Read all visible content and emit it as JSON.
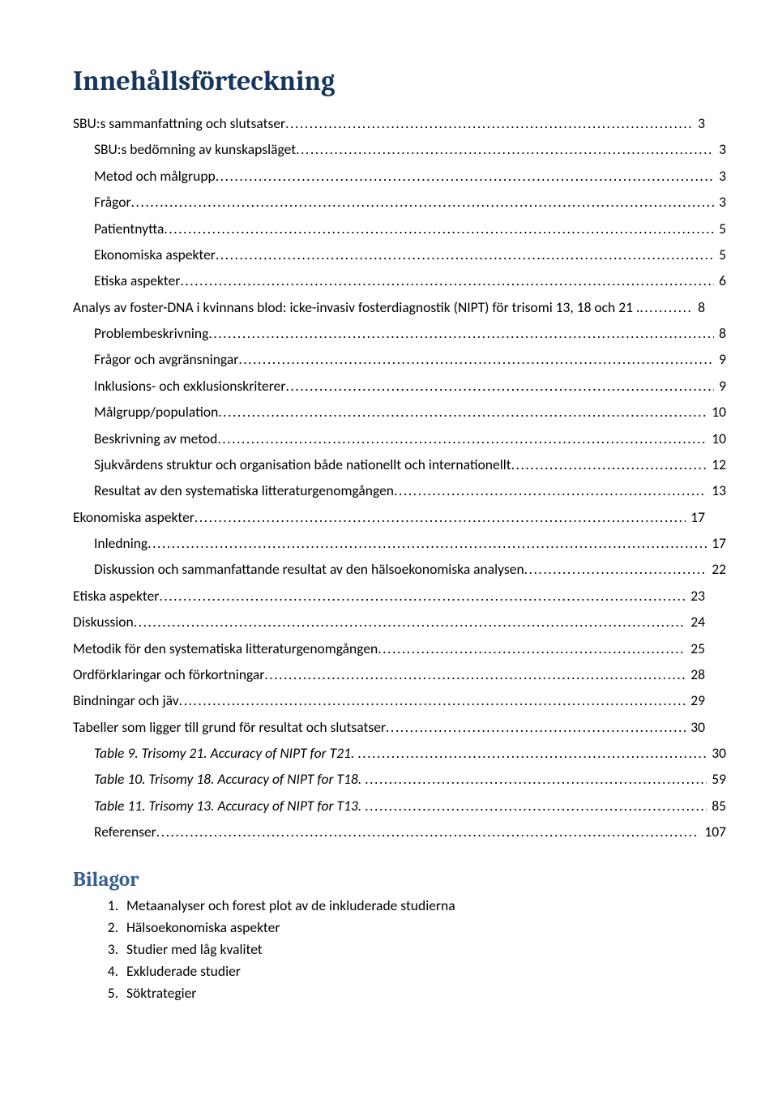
{
  "heading": "Innehållsförteckning",
  "toc": [
    {
      "label": "SBU:s sammanfattning och slutsatser",
      "page": "3",
      "indent": 0,
      "italic": false
    },
    {
      "label": "SBU:s bedömning av kunskapsläget",
      "page": "3",
      "indent": 1,
      "italic": false
    },
    {
      "label": "Metod och målgrupp",
      "page": "3",
      "indent": 1,
      "italic": false
    },
    {
      "label": "Frågor",
      "page": "3",
      "indent": 1,
      "italic": false
    },
    {
      "label": "Patientnytta",
      "page": "5",
      "indent": 1,
      "italic": false
    },
    {
      "label": "Ekonomiska aspekter",
      "page": "5",
      "indent": 1,
      "italic": false
    },
    {
      "label": "Etiska aspekter",
      "page": "6",
      "indent": 1,
      "italic": false
    },
    {
      "label": "Analys av foster-DNA i kvinnans blod: icke-invasiv fosterdiagnostik (NIPT) för trisomi 13, 18 och 21 .",
      "page": "8",
      "indent": 0,
      "italic": false
    },
    {
      "label": "Problembeskrivning",
      "page": "8",
      "indent": 1,
      "italic": false
    },
    {
      "label": "Frågor och avgränsningar",
      "page": "9",
      "indent": 1,
      "italic": false
    },
    {
      "label": "Inklusions- och exklusionskriterer",
      "page": "9",
      "indent": 1,
      "italic": false
    },
    {
      "label": "Målgrupp/population",
      "page": "10",
      "indent": 1,
      "italic": false
    },
    {
      "label": "Beskrivning av metod",
      "page": "10",
      "indent": 1,
      "italic": false
    },
    {
      "label": "Sjukvårdens struktur och organisation både nationellt och internationellt",
      "page": "12",
      "indent": 1,
      "italic": false
    },
    {
      "label": "Resultat av den systematiska litteraturgenomgången",
      "page": "13",
      "indent": 1,
      "italic": false
    },
    {
      "label": "Ekonomiska aspekter",
      "page": "17",
      "indent": 0,
      "italic": false
    },
    {
      "label": "Inledning",
      "page": "17",
      "indent": 1,
      "italic": false
    },
    {
      "label": "Diskussion och sammanfattande resultat av den hälsoekonomiska analysen",
      "page": "22",
      "indent": 1,
      "italic": false
    },
    {
      "label": "Etiska aspekter",
      "page": "23",
      "indent": 0,
      "italic": false
    },
    {
      "label": "Diskussion",
      "page": "24",
      "indent": 0,
      "italic": false
    },
    {
      "label": "Metodik för den systematiska litteraturgenomgången",
      "page": "25",
      "indent": 0,
      "italic": false
    },
    {
      "label": "Ordförklaringar och förkortningar",
      "page": "28",
      "indent": 0,
      "italic": false
    },
    {
      "label": "Bindningar och jäv",
      "page": "29",
      "indent": 0,
      "italic": false
    },
    {
      "label": "Tabeller som ligger till grund för resultat och slutsatser",
      "page": "30",
      "indent": 0,
      "italic": false
    },
    {
      "label": "Table 9. Trisomy 21. Accuracy of NIPT for T21. ",
      "page": "30",
      "indent": 1,
      "italic": true
    },
    {
      "label": "Table 10. Trisomy 18. Accuracy of NIPT for T18. ",
      "page": "59",
      "indent": 1,
      "italic": true
    },
    {
      "label": "Table 11. Trisomy 13. Accuracy of NIPT for T13. ",
      "page": "85",
      "indent": 1,
      "italic": true
    },
    {
      "label": "Referenser",
      "page": "107",
      "indent": 1,
      "italic": false
    }
  ],
  "bilagor_heading": "Bilagor",
  "appendices": [
    "Metaanalyser och forest plot av de inkluderade studierna",
    "Hälsoekonomiska aspekter",
    "Studier med låg kvalitet",
    "Exkluderade studier",
    "Söktrategier"
  ],
  "colors": {
    "page_bg": "#ffffff",
    "text": "#000000",
    "h1": "#17365d",
    "h2": "#365f91"
  },
  "typography": {
    "h1_fontsize": 34,
    "h2_fontsize": 25,
    "body_fontsize": 17.5,
    "heading_font": "Cambria",
    "body_font": "Calibri"
  }
}
